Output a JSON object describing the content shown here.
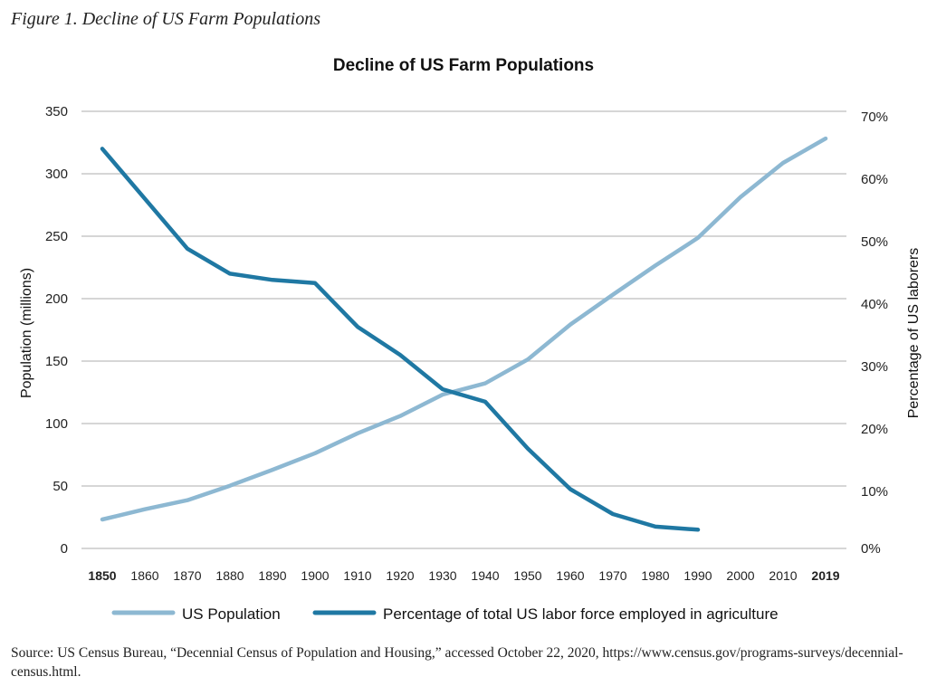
{
  "figure_caption": "Figure 1. Decline of US Farm Populations",
  "source_note": "Source: US Census Bureau, “Decennial Census of Population and Housing,” accessed October 22, 2020, https://www.census.gov/programs-surveys/decennial-census.html.",
  "colors": {
    "population": "#8db8d2",
    "agriculture": "#1f78a3",
    "grid": "#c8c8c8"
  },
  "chart_data": {
    "type": "line",
    "title": "Decline of US Farm Populations",
    "xlabel": "",
    "ylabel_left": "Population (millions)",
    "ylabel_right": "Percentage of US laborers",
    "x": [
      "1850",
      "1860",
      "1870",
      "1880",
      "1890",
      "1900",
      "1910",
      "1920",
      "1930",
      "1940",
      "1950",
      "1960",
      "1970",
      "1980",
      "1990",
      "2000",
      "2010",
      "2019"
    ],
    "ylim_left": [
      0,
      350
    ],
    "ylim_right": [
      0,
      70
    ],
    "yticks_left": [
      "0",
      "50",
      "100",
      "150",
      "200",
      "250",
      "300",
      "350"
    ],
    "yticks_right": [
      "0%",
      "10%",
      "20%",
      "30%",
      "40%",
      "50%",
      "60%",
      "70%"
    ],
    "grid": true,
    "legend_position": "bottom",
    "series": [
      {
        "name": "US Population",
        "axis": "left",
        "values": [
          23.2,
          31.4,
          38.6,
          50.2,
          63.0,
          76.2,
          92.2,
          106.0,
          123.2,
          132.2,
          151.3,
          179.3,
          203.2,
          226.5,
          248.7,
          281.4,
          308.7,
          328.2
        ]
      },
      {
        "name": "Percentage of total US labor force employed in agriculture",
        "axis": "right",
        "values": [
          64,
          56,
          48,
          44,
          43,
          42.5,
          35.5,
          31,
          25.5,
          23.5,
          16,
          9.5,
          5.5,
          3.5,
          3,
          null,
          null,
          null
        ]
      }
    ]
  }
}
